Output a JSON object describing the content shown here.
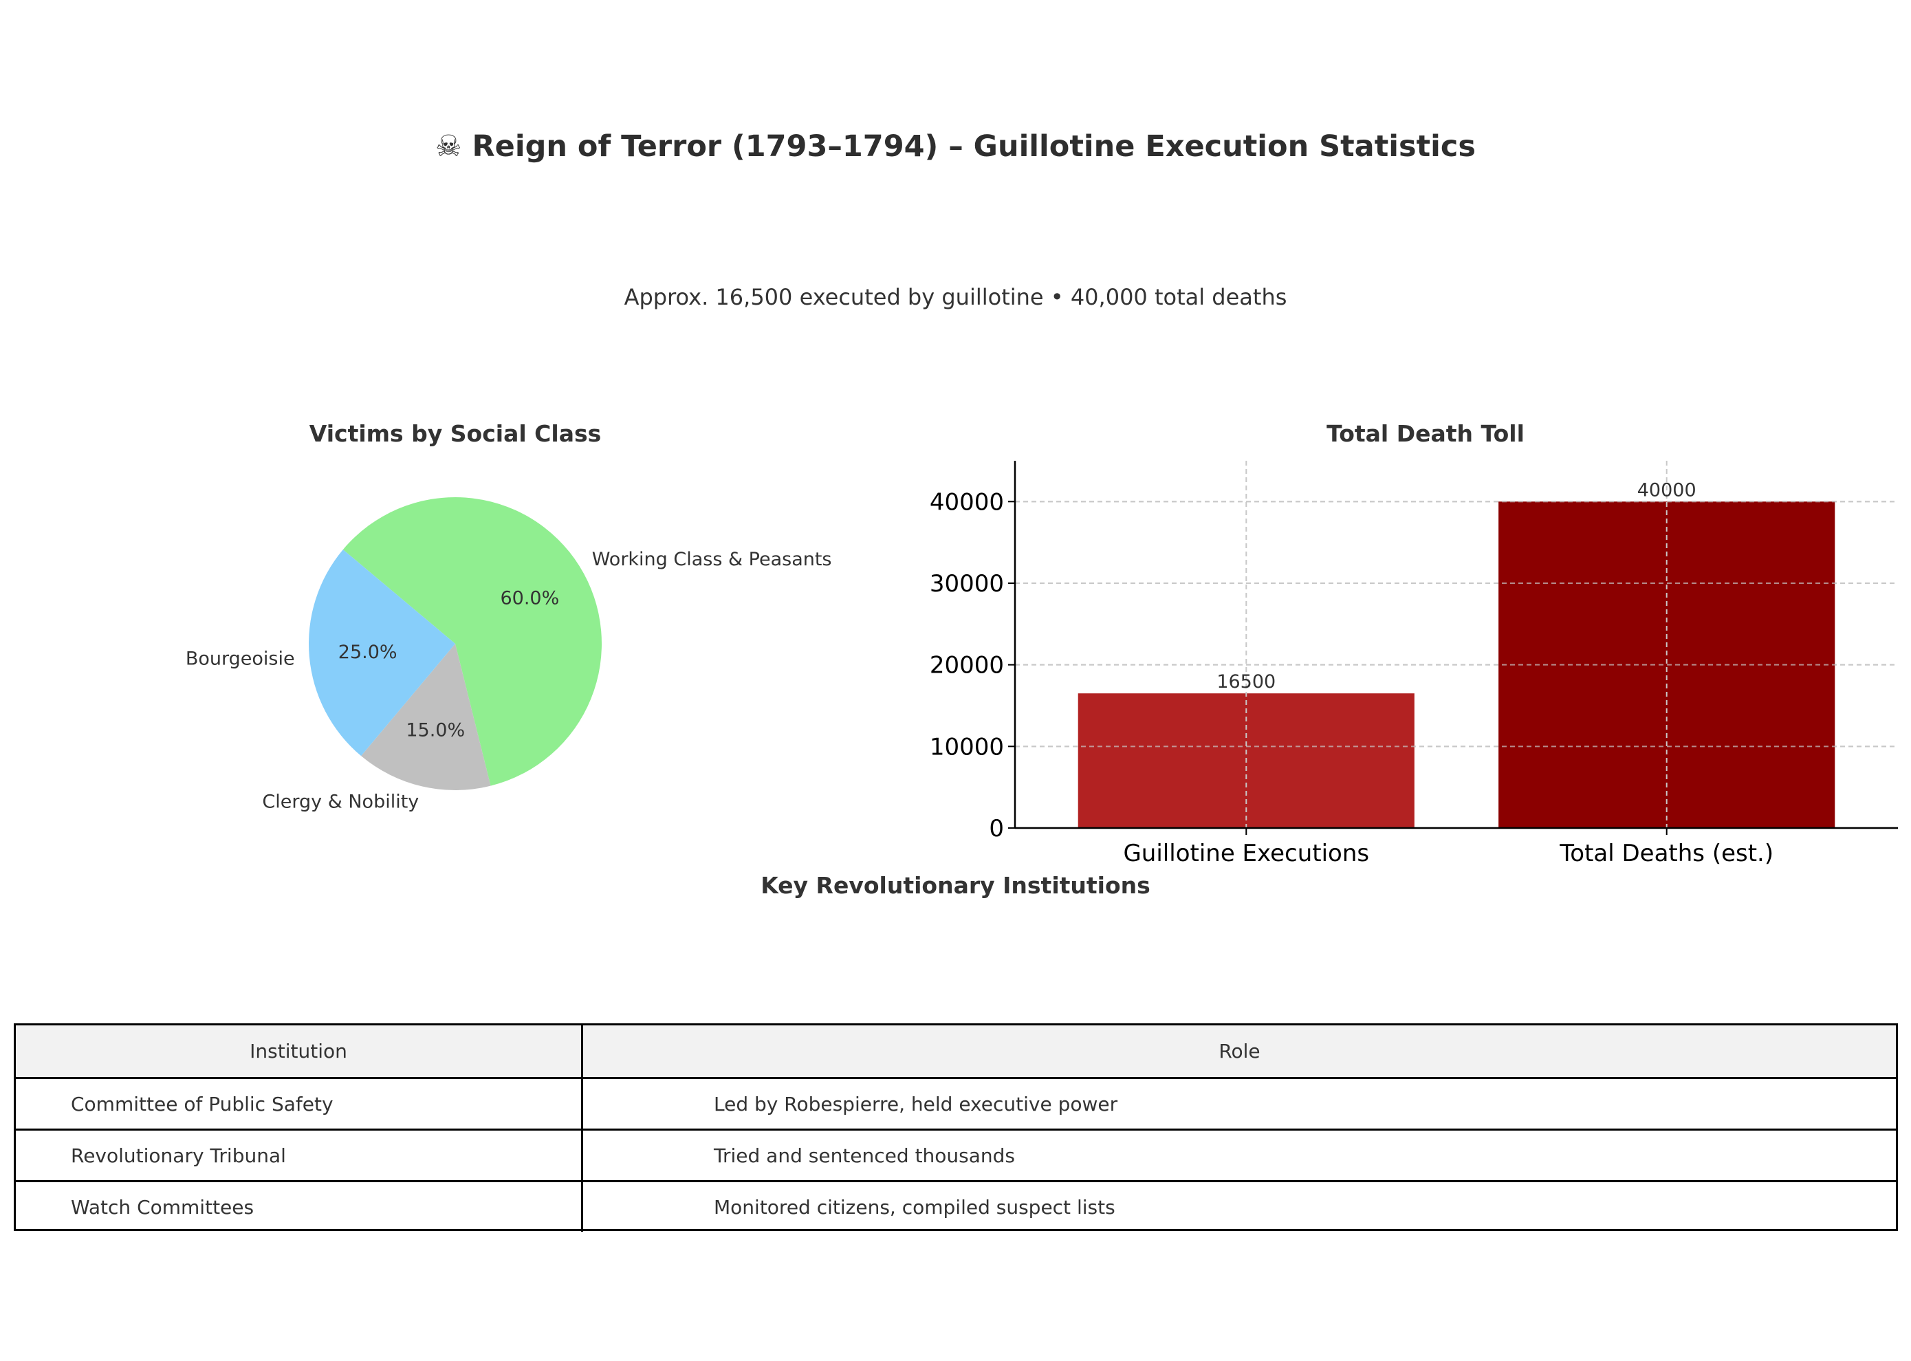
{
  "title": "☠ Reign of Terror (1793–1794) – Guillotine Execution Statistics",
  "subtitle": "Approx. 16,500 executed by guillotine • 40,000 total deaths",
  "chart_data": [
    {
      "type": "pie",
      "title": "Victims by Social Class",
      "slices": [
        {
          "label": "Working Class & Peasants",
          "value": 60.0,
          "pct_label": "60.0%",
          "color": "#90ee90"
        },
        {
          "label": "Clergy & Nobility",
          "value": 15.0,
          "pct_label": "15.0%",
          "color": "#c0c0c0"
        },
        {
          "label": "Bourgeoisie",
          "value": 25.0,
          "pct_label": "25.0%",
          "color": "#87cefa"
        }
      ]
    },
    {
      "type": "bar",
      "title": "Total Death Toll",
      "categories": [
        "Guillotine Executions",
        "Total Deaths (est.)"
      ],
      "values": [
        16500,
        40000
      ],
      "value_labels": [
        "16500",
        "40000"
      ],
      "colors": [
        "#b22222",
        "#8b0000"
      ],
      "ylim": [
        0,
        45000
      ],
      "yticks": [
        0,
        10000,
        20000,
        30000,
        40000
      ],
      "ytick_labels": [
        "0",
        "10000",
        "20000",
        "30000",
        "40000"
      ],
      "grid": true,
      "xlabel": "",
      "ylabel": ""
    }
  ],
  "table": {
    "title": "Key Revolutionary Institutions",
    "headers": [
      "Institution",
      "Role"
    ],
    "rows": [
      [
        "Committee of Public Safety",
        "Led by Robespierre, held executive power"
      ],
      [
        "Revolutionary Tribunal",
        "Tried and sentenced thousands"
      ],
      [
        "Watch Committees",
        "Monitored citizens, compiled suspect lists"
      ]
    ]
  }
}
